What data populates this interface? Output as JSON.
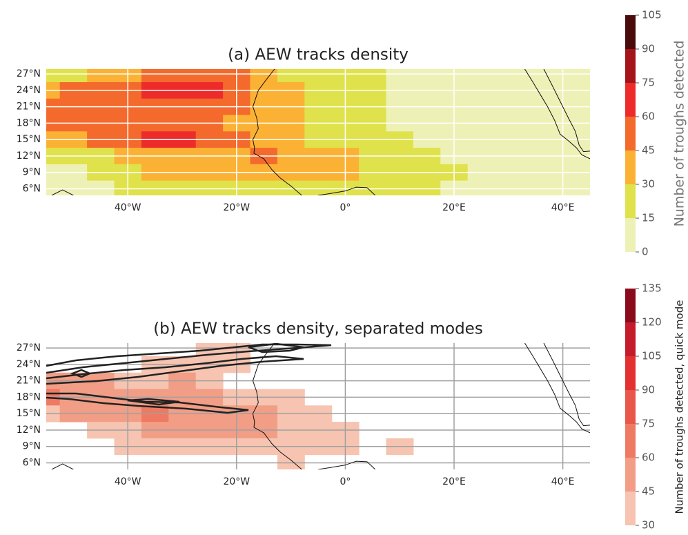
{
  "chart_data": [
    {
      "type": "contour",
      "title": "(a) AEW tracks density",
      "x": [
        -55,
        -50,
        -45,
        -40,
        -35,
        -30,
        -25,
        -20,
        -15,
        -10,
        -5,
        0,
        5,
        10,
        15,
        20,
        25,
        30,
        35,
        40,
        45
      ],
      "y": [
        27,
        24,
        21,
        18,
        15,
        12,
        9,
        6
      ],
      "values": [
        [
          20,
          25,
          35,
          40,
          50,
          50,
          55,
          45,
          35,
          25,
          20,
          18,
          15,
          12,
          10,
          8,
          8,
          8,
          8,
          8,
          8
        ],
        [
          40,
          45,
          45,
          50,
          60,
          65,
          65,
          55,
          40,
          30,
          22,
          18,
          15,
          12,
          10,
          8,
          8,
          8,
          8,
          8,
          8
        ],
        [
          50,
          55,
          55,
          50,
          50,
          50,
          50,
          45,
          35,
          30,
          25,
          20,
          15,
          12,
          10,
          8,
          8,
          8,
          8,
          8,
          8
        ],
        [
          55,
          55,
          50,
          50,
          55,
          55,
          50,
          40,
          35,
          35,
          25,
          20,
          15,
          12,
          10,
          8,
          8,
          8,
          8,
          8,
          8
        ],
        [
          35,
          40,
          45,
          55,
          60,
          60,
          55,
          50,
          40,
          30,
          25,
          22,
          18,
          15,
          12,
          10,
          8,
          8,
          8,
          8,
          8
        ],
        [
          15,
          18,
          25,
          35,
          40,
          40,
          40,
          40,
          45,
          40,
          35,
          30,
          25,
          20,
          15,
          12,
          10,
          8,
          8,
          8,
          8
        ],
        [
          10,
          12,
          18,
          25,
          30,
          32,
          35,
          35,
          40,
          35,
          30,
          30,
          28,
          25,
          20,
          15,
          10,
          8,
          8,
          8,
          8
        ],
        [
          5,
          8,
          12,
          15,
          18,
          20,
          20,
          22,
          25,
          25,
          20,
          20,
          18,
          18,
          15,
          12,
          8,
          5,
          5,
          5,
          5
        ]
      ],
      "xlim": [
        -55,
        45
      ],
      "ylim": [
        4.8,
        27.9
      ],
      "xticks": [
        {
          "value": -40,
          "label": "40°W"
        },
        {
          "value": -20,
          "label": "20°W"
        },
        {
          "value": 0,
          "label": "0°"
        },
        {
          "value": 20,
          "label": "20°E"
        },
        {
          "value": 40,
          "label": "40°E"
        }
      ],
      "yticks": [
        {
          "value": 27,
          "label": "27°N"
        },
        {
          "value": 24,
          "label": "24°N"
        },
        {
          "value": 21,
          "label": "21°N"
        },
        {
          "value": 18,
          "label": "18°N"
        },
        {
          "value": 15,
          "label": "15°N"
        },
        {
          "value": 12,
          "label": "12°N"
        },
        {
          "value": 9,
          "label": "9°N"
        },
        {
          "value": 6,
          "label": "6°N"
        }
      ],
      "grid": true,
      "grid_color": "#ffffff",
      "colorbar": {
        "label": "Number of troughs detected",
        "levels": [
          0,
          15,
          30,
          45,
          60,
          75,
          90,
          105
        ],
        "colors": [
          "#eef1b6",
          "#dfe24a",
          "#fbb234",
          "#f46a2c",
          "#ee2b2b",
          "#a51419",
          "#4a0b0b"
        ]
      }
    },
    {
      "type": "contour",
      "title": "(b) AEW tracks density, separated modes",
      "x": [
        -55,
        -50,
        -45,
        -40,
        -35,
        -30,
        -25,
        -20,
        -15,
        -10,
        -5,
        0,
        5,
        10,
        15,
        20,
        25,
        30,
        35,
        40,
        45
      ],
      "y": [
        27,
        24,
        21,
        18,
        15,
        12,
        9,
        6
      ],
      "values": [
        [
          null,
          null,
          null,
          null,
          null,
          null,
          35,
          35,
          null,
          null,
          null,
          null,
          null,
          null,
          null,
          null,
          null,
          null,
          null,
          null,
          null
        ],
        [
          null,
          null,
          null,
          null,
          35,
          40,
          40,
          35,
          null,
          null,
          null,
          null,
          null,
          null,
          null,
          null,
          null,
          null,
          null,
          null,
          null
        ],
        [
          45,
          50,
          45,
          40,
          40,
          45,
          40,
          null,
          null,
          null,
          null,
          null,
          null,
          null,
          null,
          null,
          null,
          null,
          null,
          null,
          null
        ],
        [
          60,
          55,
          50,
          50,
          50,
          45,
          45,
          40,
          40,
          35,
          null,
          null,
          null,
          null,
          null,
          null,
          null,
          null,
          null,
          null,
          null
        ],
        [
          40,
          45,
          50,
          55,
          60,
          55,
          50,
          50,
          45,
          40,
          35,
          null,
          null,
          null,
          null,
          null,
          null,
          null,
          null,
          null,
          null
        ],
        [
          null,
          null,
          35,
          40,
          45,
          45,
          45,
          45,
          45,
          40,
          40,
          35,
          null,
          null,
          null,
          null,
          null,
          null,
          null,
          null,
          null
        ],
        [
          null,
          null,
          null,
          35,
          35,
          40,
          40,
          40,
          40,
          40,
          35,
          35,
          null,
          35,
          null,
          null,
          null,
          null,
          null,
          null,
          null
        ],
        [
          null,
          null,
          null,
          null,
          null,
          null,
          null,
          null,
          null,
          35,
          null,
          null,
          null,
          null,
          null,
          null,
          null,
          null,
          null,
          null,
          null
        ]
      ],
      "xlim": [
        -55,
        45
      ],
      "ylim": [
        4.8,
        27.9
      ],
      "xticks": [
        {
          "value": -40,
          "label": "40°W"
        },
        {
          "value": -20,
          "label": "20°W"
        },
        {
          "value": 0,
          "label": "0°"
        },
        {
          "value": 20,
          "label": "20°E"
        },
        {
          "value": 40,
          "label": "40°E"
        }
      ],
      "yticks": [
        {
          "value": 27,
          "label": "27°N"
        },
        {
          "value": 24,
          "label": "24°N"
        },
        {
          "value": 21,
          "label": "21°N"
        },
        {
          "value": 18,
          "label": "18°N"
        },
        {
          "value": 15,
          "label": "15°N"
        },
        {
          "value": 12,
          "label": "12°N"
        },
        {
          "value": 9,
          "label": "9°N"
        },
        {
          "value": 6,
          "label": "6°N"
        }
      ],
      "grid": true,
      "grid_color": "#a0a0a0",
      "colorbar": {
        "label": "Number of troughs detected, quick mode",
        "levels": [
          30,
          45,
          60,
          75,
          90,
          105,
          120,
          135
        ],
        "colors": [
          "#f6c4b0",
          "#f29d85",
          "#ee7a63",
          "#e9564a",
          "#e33131",
          "#c51c2b",
          "#8a0c1c"
        ]
      }
    }
  ]
}
